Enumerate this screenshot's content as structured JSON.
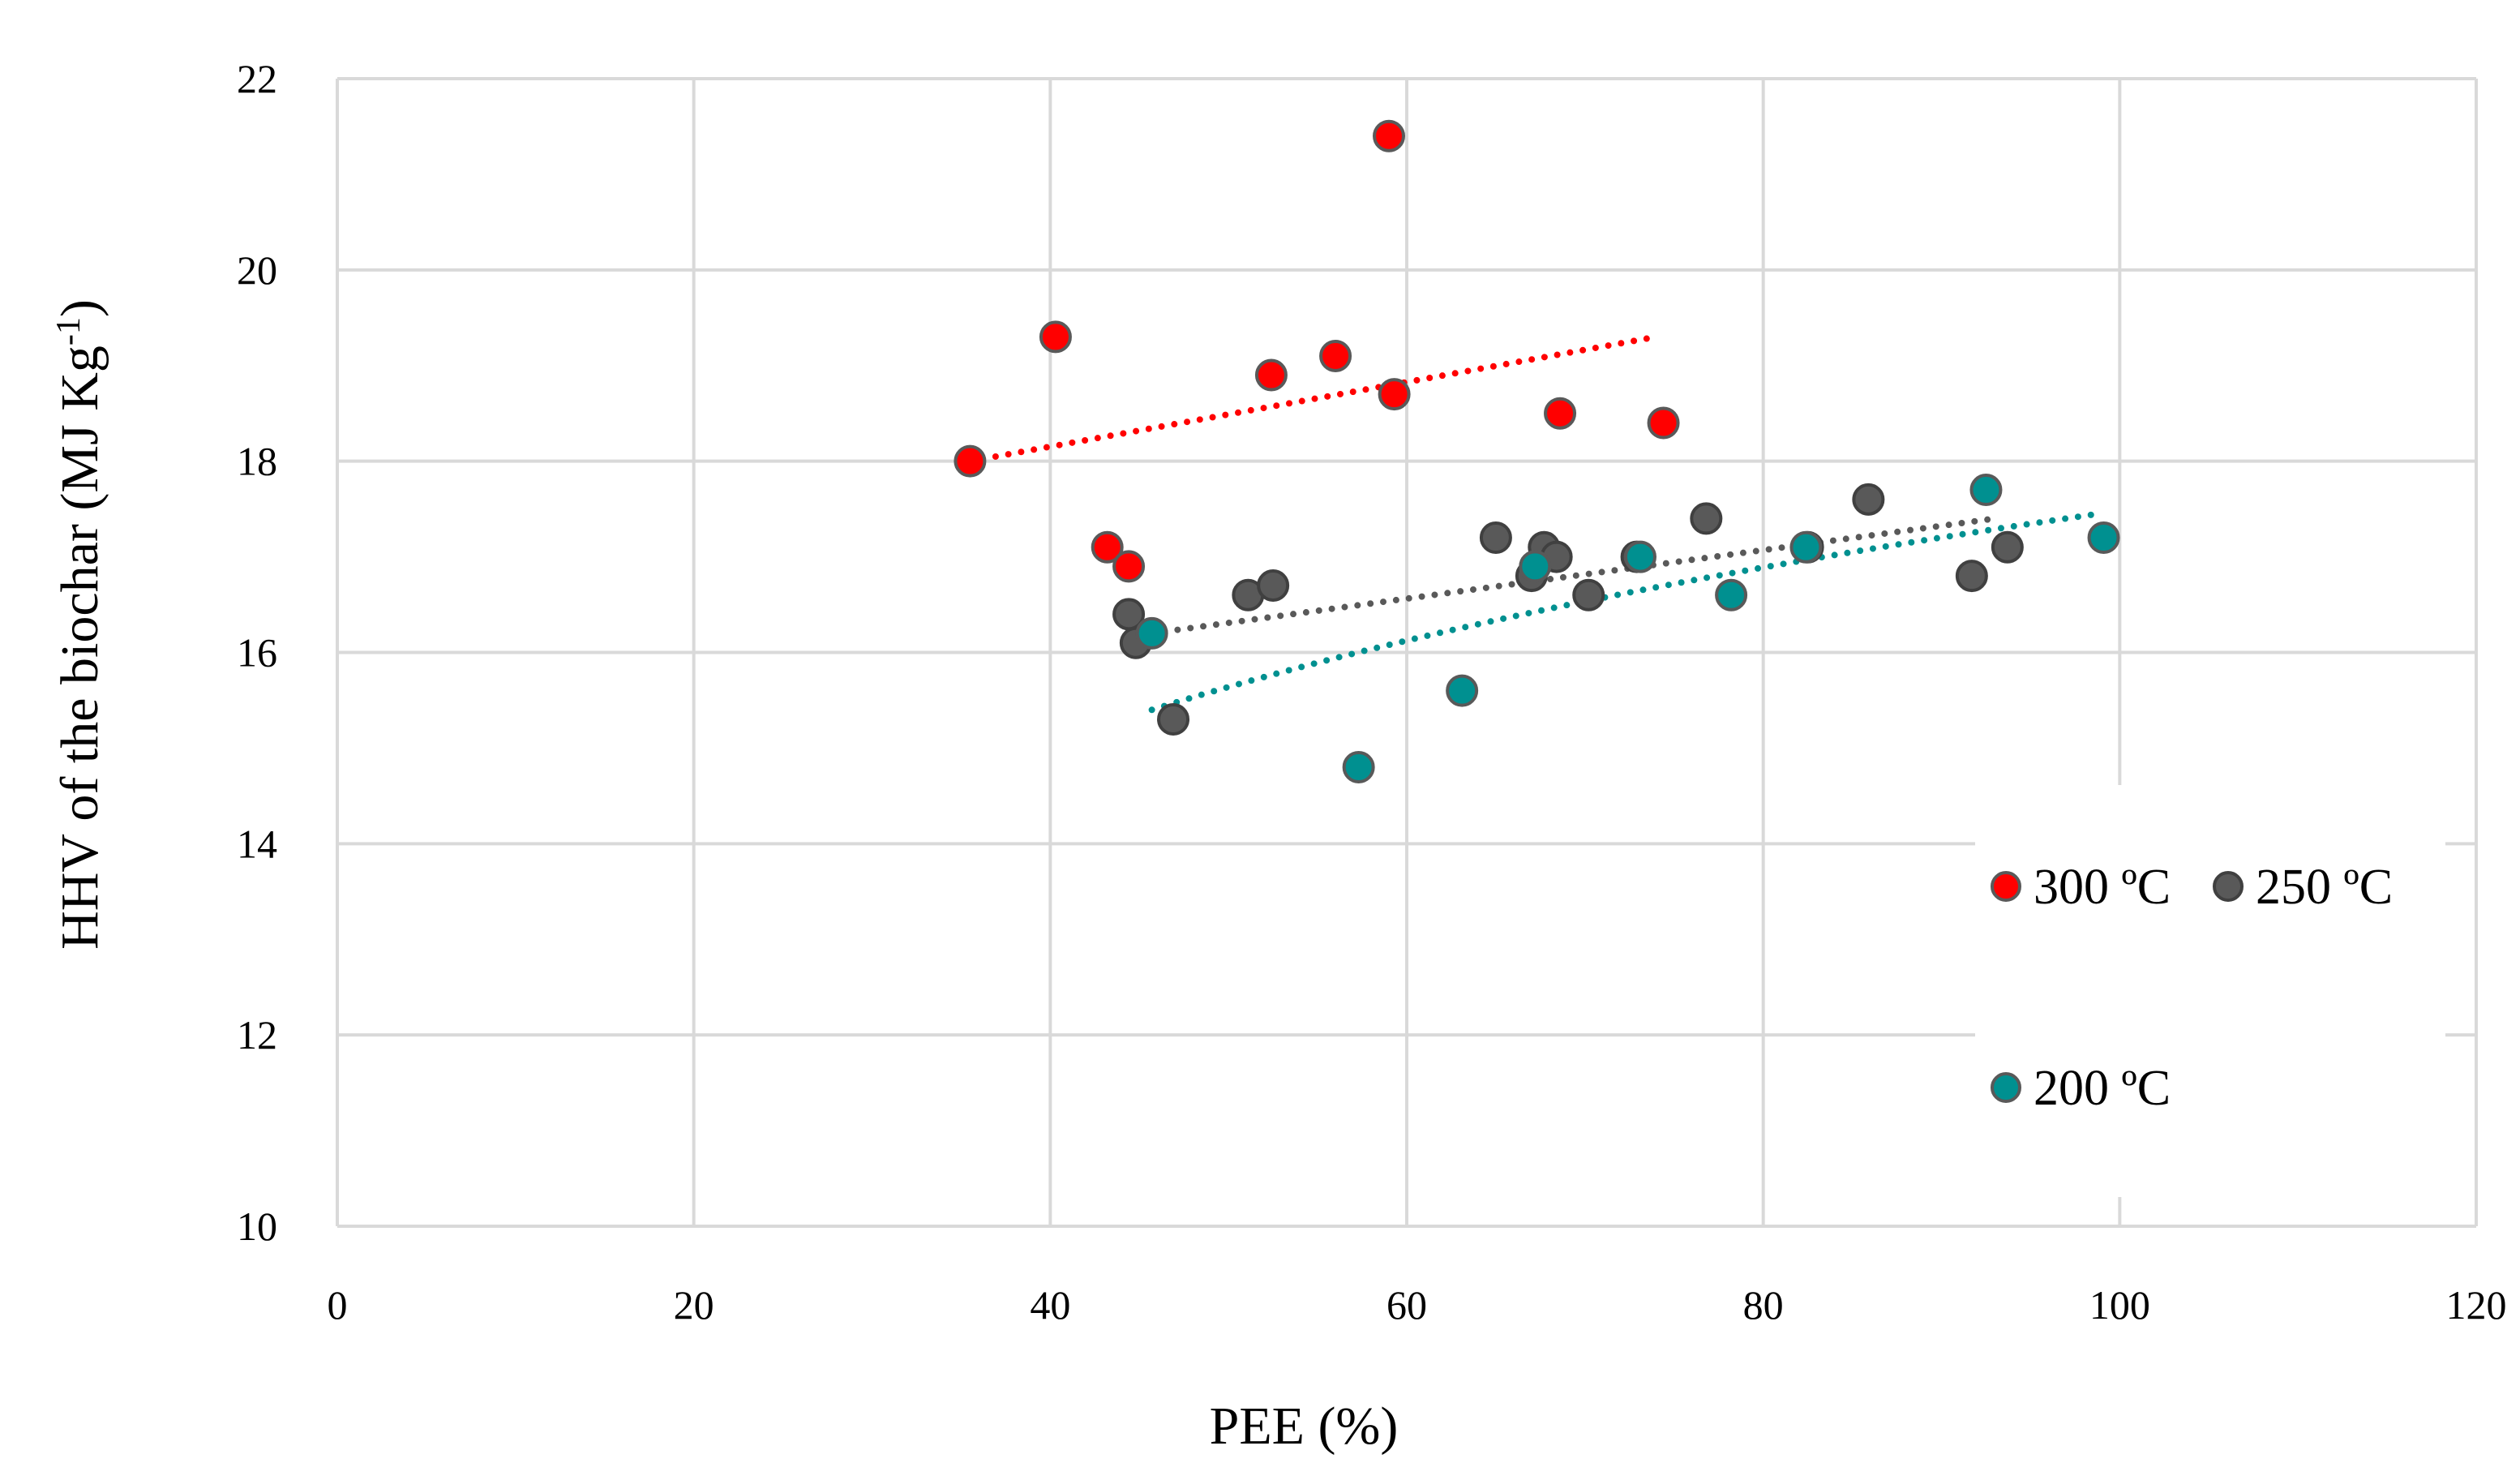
{
  "chart_data": {
    "type": "scatter",
    "title": "",
    "xlabel": "PEE (%)",
    "ylabel": "HHV of the biochar (MJ Kg",
    "ylabel_sup": "-1",
    "ylabel_end": ")",
    "xlim": [
      0,
      120
    ],
    "ylim": [
      10,
      22
    ],
    "grid": true,
    "legend_position": "right",
    "x_ticks": [
      0,
      20,
      40,
      60,
      80,
      100,
      120
    ],
    "y_ticks": [
      10,
      12,
      14,
      16,
      18,
      20,
      22
    ],
    "series": [
      {
        "name": "300 ºC",
        "color": "#ff0000",
        "edge": "#595959",
        "points": [
          [
            35.5,
            18.0
          ],
          [
            40.3,
            19.3
          ],
          [
            43.2,
            17.1
          ],
          [
            44.4,
            16.9
          ],
          [
            52.4,
            18.9
          ],
          [
            56.0,
            19.1
          ],
          [
            59.0,
            21.4
          ],
          [
            59.3,
            18.7
          ],
          [
            68.6,
            18.5
          ],
          [
            74.4,
            18.4
          ]
        ],
        "trendline": {
          "type": "linear",
          "x_range": [
            35.5,
            74.0
          ],
          "y_range": [
            18.0,
            19.3
          ]
        }
      },
      {
        "name": "250 ºC",
        "color": "#595959",
        "edge": "#404040",
        "points": [
          [
            44.4,
            16.4
          ],
          [
            44.8,
            16.1
          ],
          [
            46.9,
            15.3
          ],
          [
            51.1,
            16.6
          ],
          [
            52.5,
            16.7
          ],
          [
            65.0,
            17.2
          ],
          [
            67.0,
            16.8
          ],
          [
            67.7,
            17.1
          ],
          [
            68.4,
            17.0
          ],
          [
            70.2,
            16.6
          ],
          [
            72.9,
            17.0
          ],
          [
            76.8,
            17.4
          ],
          [
            82.5,
            17.1
          ],
          [
            85.9,
            17.6
          ],
          [
            91.7,
            16.8
          ],
          [
            93.7,
            17.1
          ]
        ],
        "trendline": {
          "type": "linear",
          "x_range": [
            45.7,
            93.0
          ],
          "y_range": [
            16.2,
            17.4
          ]
        }
      },
      {
        "name": "200 ºC",
        "color": "#009090",
        "edge": "#595959",
        "points": [
          [
            45.7,
            16.2
          ],
          [
            57.3,
            14.8
          ],
          [
            63.1,
            15.6
          ],
          [
            67.2,
            16.9
          ],
          [
            73.1,
            17.0
          ],
          [
            78.2,
            16.6
          ],
          [
            82.4,
            17.1
          ],
          [
            92.5,
            17.7
          ],
          [
            99.1,
            17.2
          ]
        ],
        "trendline": {
          "type": "logarithmic",
          "x_range": [
            45.7,
            98.8
          ],
          "y_range": [
            15.4,
            17.45
          ]
        }
      }
    ]
  }
}
